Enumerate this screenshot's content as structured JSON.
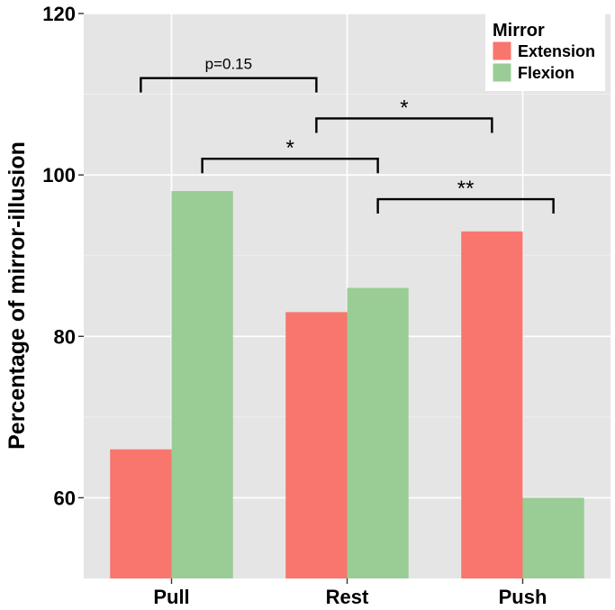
{
  "chart_data": {
    "type": "bar",
    "title": "",
    "xlabel": "",
    "ylabel": "Percentage of mirror-illusion",
    "categories": [
      "Pull",
      "Rest",
      "Push"
    ],
    "series": [
      {
        "name": "Extension",
        "color": "#F8766D",
        "values": [
          66,
          83,
          93
        ]
      },
      {
        "name": "Flexion",
        "color": "#9ACD96",
        "values": [
          98,
          86,
          60
        ]
      }
    ],
    "ylim": [
      50,
      120
    ],
    "yticks": [
      60,
      80,
      100,
      120
    ],
    "grid": true,
    "legend": {
      "title": "Mirror",
      "position": "top-right"
    },
    "annotations": [
      {
        "label": "p=0.15",
        "from": {
          "category": "Pull",
          "series": "Extension"
        },
        "to": {
          "category": "Rest",
          "series": "Extension"
        },
        "y": 112
      },
      {
        "label": "*",
        "from": {
          "category": "Rest",
          "series": "Extension"
        },
        "to": {
          "category": "Push",
          "series": "Extension"
        },
        "y": 107
      },
      {
        "label": "*",
        "from": {
          "category": "Pull",
          "series": "Flexion"
        },
        "to": {
          "category": "Rest",
          "series": "Flexion"
        },
        "y": 102
      },
      {
        "label": "**",
        "from": {
          "category": "Rest",
          "series": "Flexion"
        },
        "to": {
          "category": "Push",
          "series": "Flexion"
        },
        "y": 97
      }
    ]
  }
}
